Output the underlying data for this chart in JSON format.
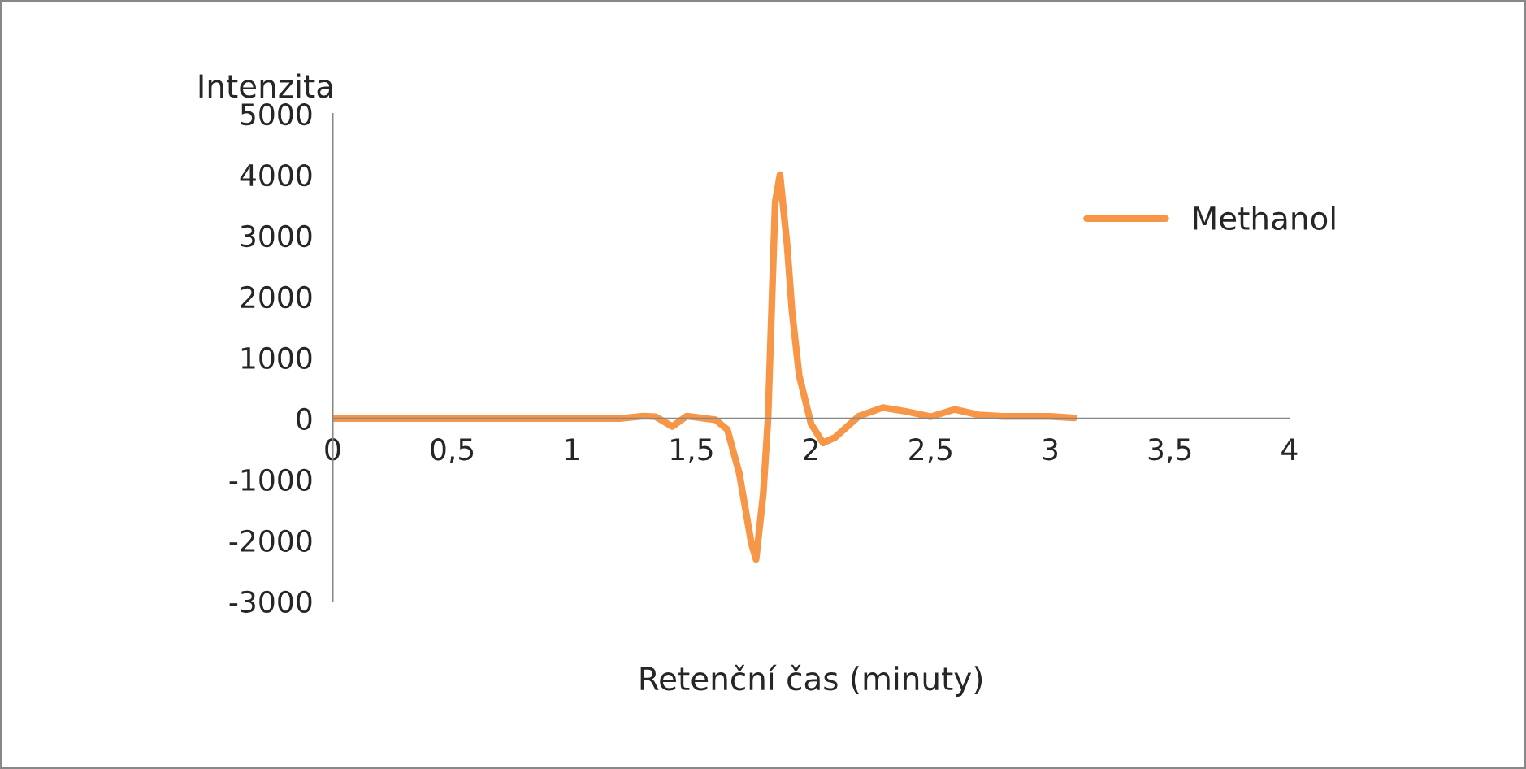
{
  "chart_data": {
    "type": "line",
    "xlabel": "Retenční čas (minuty)",
    "ylabel": "Intenzita",
    "x": [
      0,
      0.5,
      1.0,
      1.2,
      1.3,
      1.35,
      1.42,
      1.48,
      1.6,
      1.65,
      1.7,
      1.75,
      1.77,
      1.8,
      1.82,
      1.85,
      1.87,
      1.9,
      1.92,
      1.95,
      2.0,
      2.05,
      2.1,
      2.2,
      2.3,
      2.4,
      2.5,
      2.55,
      2.6,
      2.7,
      2.8,
      3.0,
      3.1
    ],
    "series": [
      {
        "name": "Methanol",
        "color": "#f79646",
        "values": [
          0,
          0,
          0,
          0,
          40,
          30,
          -130,
          40,
          -20,
          -180,
          -900,
          -2040,
          -2310,
          -1240,
          0,
          3550,
          4000,
          2840,
          1780,
          710,
          -90,
          -400,
          -310,
          40,
          180,
          115,
          30,
          90,
          150,
          60,
          35,
          35,
          10
        ]
      }
    ],
    "xlim": [
      0,
      4
    ],
    "xticks": [
      0,
      {
        "value": 0.5,
        "label": "0,5"
      },
      1,
      {
        "value": 1.5,
        "label": "1,5"
      },
      2,
      {
        "value": 2.5,
        "label": "2,5"
      },
      3,
      {
        "value": 3.5,
        "label": "3,5"
      },
      4
    ],
    "ylim": [
      -3000,
      5000
    ],
    "yticks": [
      -3000,
      -2000,
      -1000,
      0,
      1000,
      2000,
      3000,
      4000,
      5000
    ],
    "grid": false,
    "legend": "top right",
    "marker": "none",
    "line_style": "solid"
  }
}
